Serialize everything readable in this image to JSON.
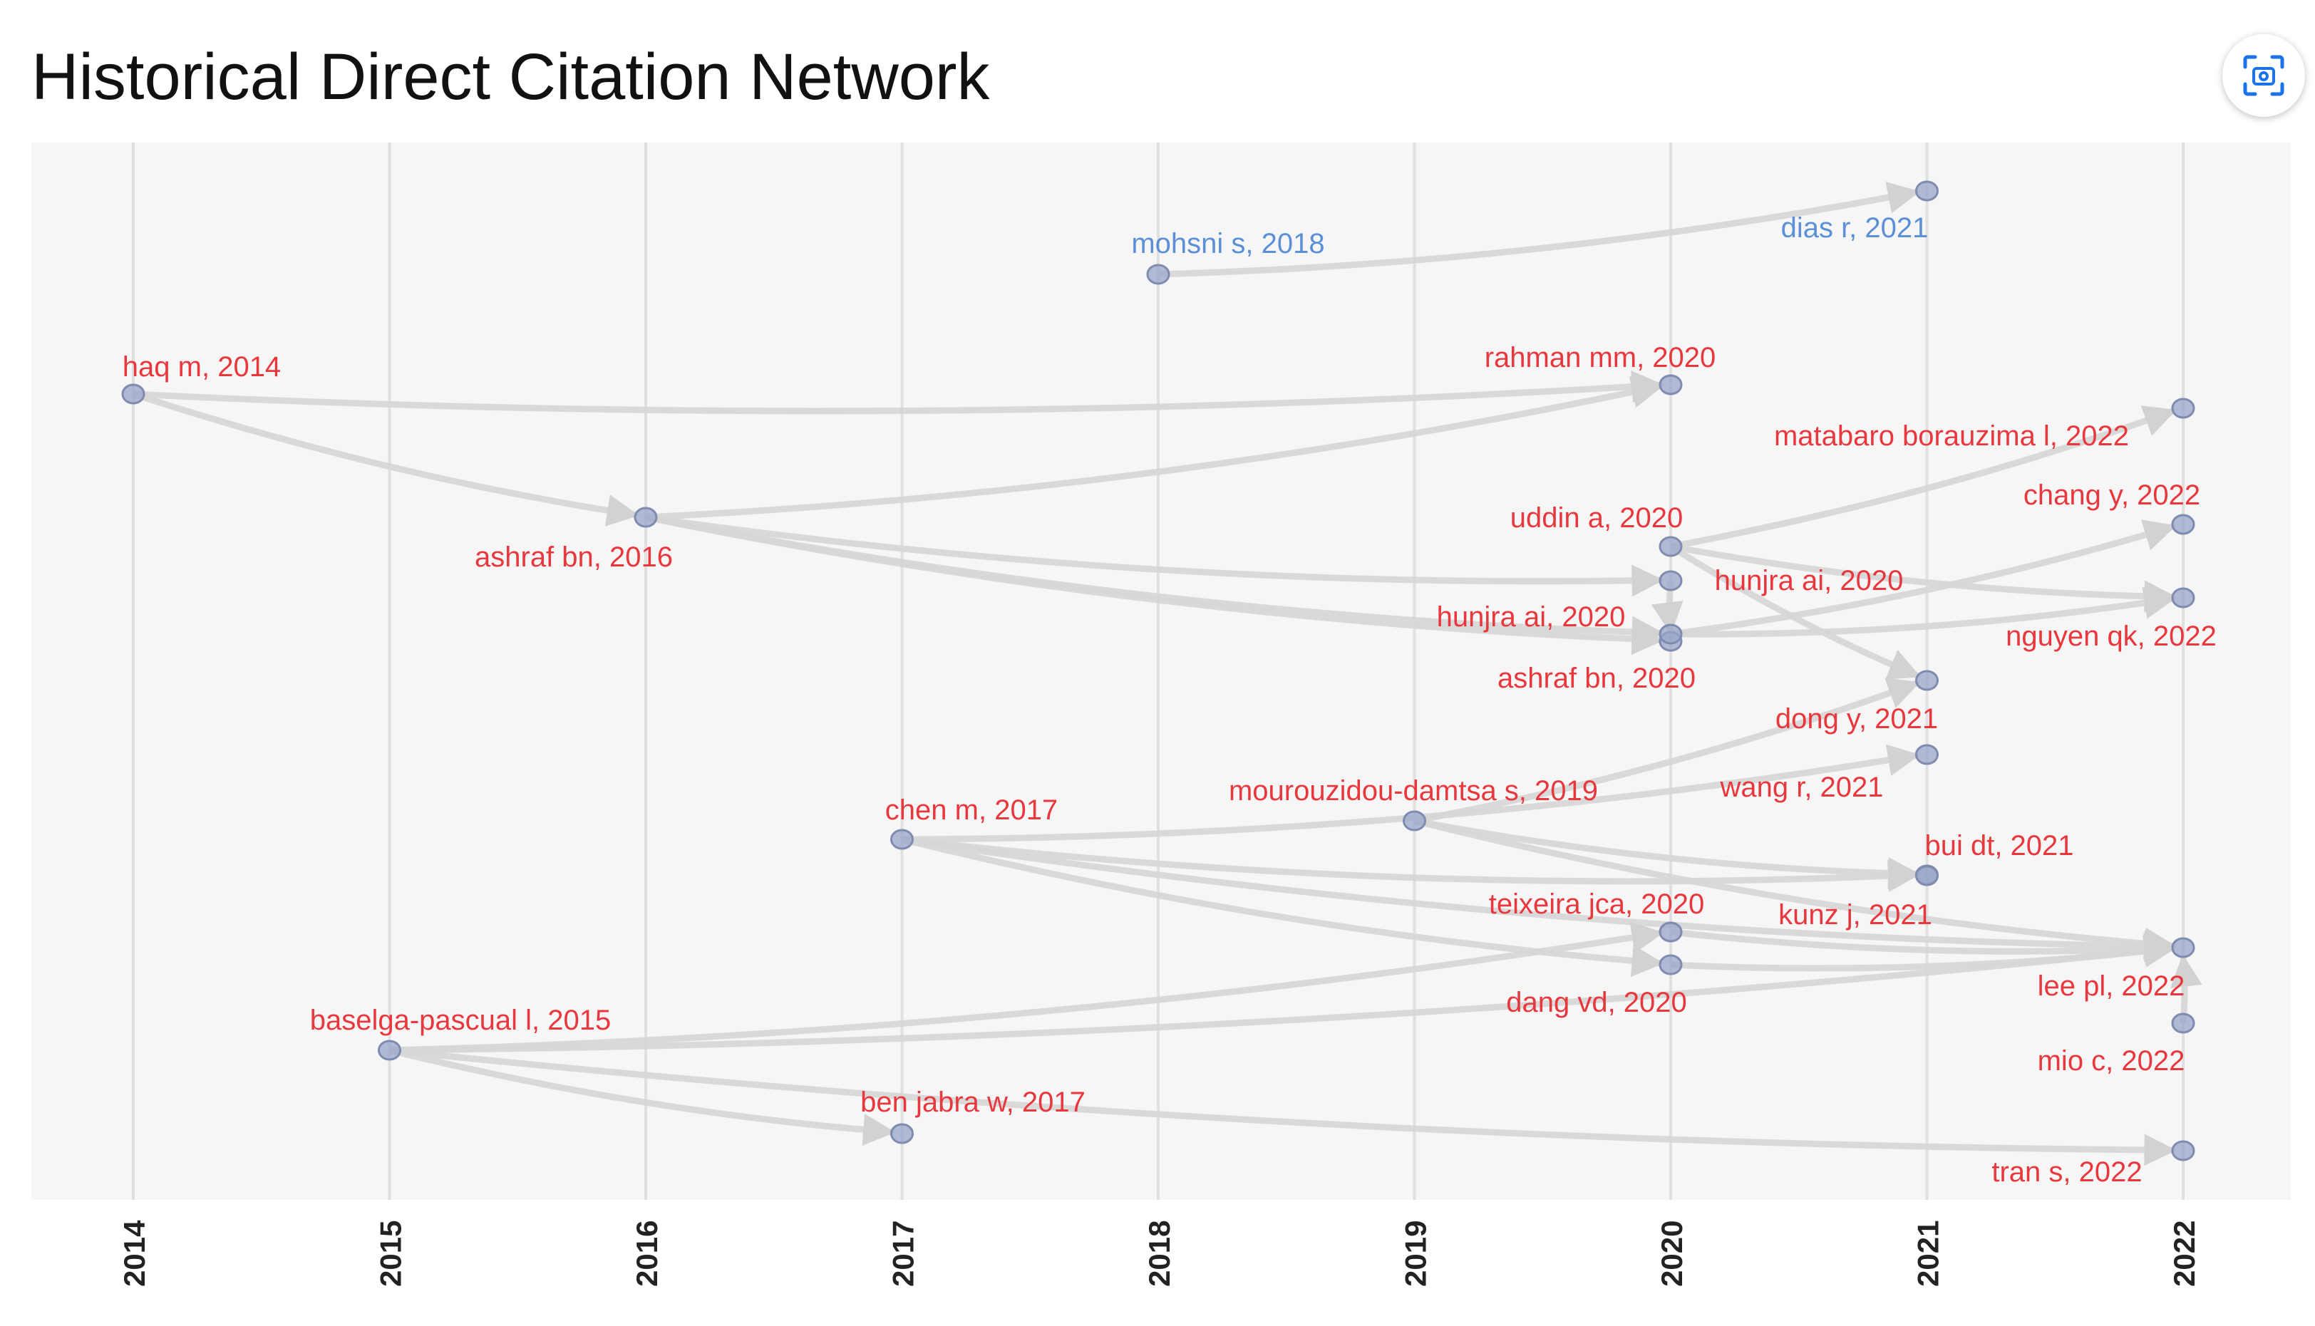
{
  "chart_data": {
    "type": "network",
    "title": "Historical Direct Citation Network",
    "x_axis": {
      "ticks": [
        "2014",
        "2015",
        "2016",
        "2017",
        "2018",
        "2019",
        "2020",
        "2021",
        "2022"
      ],
      "range": [
        2014,
        2022
      ]
    },
    "colors": {
      "red_group": "#e8383d",
      "blue_group": "#5b8fd6",
      "node": "#9aa6c8",
      "edge": "#d6d6d6",
      "grid": "#e0e0e0",
      "plot_bg": "#f6f6f6"
    },
    "nodes": [
      {
        "id": "mohsni_2018",
        "label": "mohsni s, 2018",
        "year": 2018,
        "group": "blue"
      },
      {
        "id": "dias_2021",
        "label": "dias r, 2021",
        "year": 2021,
        "group": "blue"
      },
      {
        "id": "haq_2014",
        "label": "haq m, 2014",
        "year": 2014,
        "group": "red"
      },
      {
        "id": "rahman_2020",
        "label": "rahman mm, 2020",
        "year": 2020,
        "group": "red"
      },
      {
        "id": "matabaro_2022",
        "label": "matabaro borauzima l, 2022",
        "year": 2022,
        "group": "red"
      },
      {
        "id": "ashraf_2016",
        "label": "ashraf bn, 2016",
        "year": 2016,
        "group": "red"
      },
      {
        "id": "uddin_2020",
        "label": "uddin a, 2020",
        "year": 2020,
        "group": "red"
      },
      {
        "id": "chang_2022",
        "label": "chang y, 2022",
        "year": 2022,
        "group": "red"
      },
      {
        "id": "hunjra_2020a",
        "label": "hunjra ai, 2020",
        "year": 2020,
        "group": "red"
      },
      {
        "id": "hunjra_2020b",
        "label": "hunjra ai, 2020",
        "year": 2020,
        "group": "red"
      },
      {
        "id": "nguyen_2022",
        "label": "nguyen qk, 2022",
        "year": 2022,
        "group": "red"
      },
      {
        "id": "ashraf_2020",
        "label": "ashraf bn, 2020",
        "year": 2020,
        "group": "red"
      },
      {
        "id": "dong_2021",
        "label": "dong y, 2021",
        "year": 2021,
        "group": "red"
      },
      {
        "id": "wang_2021",
        "label": "wang r, 2021",
        "year": 2021,
        "group": "red"
      },
      {
        "id": "chen_2017",
        "label": "chen m, 2017",
        "year": 2017,
        "group": "red"
      },
      {
        "id": "mourouzidou_2019",
        "label": "mourouzidou-damtsa s, 2019",
        "year": 2019,
        "group": "red"
      },
      {
        "id": "bui_2021",
        "label": "bui dt, 2021",
        "year": 2021,
        "group": "red"
      },
      {
        "id": "teixeira_2020",
        "label": "teixeira jca, 2020",
        "year": 2020,
        "group": "red"
      },
      {
        "id": "kunz_2021",
        "label": "kunz j, 2021",
        "year": 2021,
        "group": "red"
      },
      {
        "id": "lee_2022",
        "label": "lee pl, 2022",
        "year": 2022,
        "group": "red"
      },
      {
        "id": "dang_2020",
        "label": "dang vd, 2020",
        "year": 2020,
        "group": "red"
      },
      {
        "id": "baselga_2015",
        "label": "baselga-pascual l, 2015",
        "year": 2015,
        "group": "red"
      },
      {
        "id": "mio_2022",
        "label": "mio c, 2022",
        "year": 2022,
        "group": "red"
      },
      {
        "id": "benjabra_2017",
        "label": "ben jabra w, 2017",
        "year": 2017,
        "group": "red"
      },
      {
        "id": "tran_2022",
        "label": "tran s, 2022",
        "year": 2022,
        "group": "red"
      }
    ],
    "edges": [
      {
        "from": "mohsni_2018",
        "to": "dias_2021"
      },
      {
        "from": "haq_2014",
        "to": "rahman_2020"
      },
      {
        "from": "haq_2014",
        "to": "ashraf_2016"
      },
      {
        "from": "ashraf_2016",
        "to": "rahman_2020"
      },
      {
        "from": "ashraf_2016",
        "to": "hunjra_2020b"
      },
      {
        "from": "ashraf_2016",
        "to": "hunjra_2020a"
      },
      {
        "from": "ashraf_2016",
        "to": "ashraf_2020"
      },
      {
        "from": "uddin_2020",
        "to": "matabaro_2022"
      },
      {
        "from": "uddin_2020",
        "to": "nguyen_2022"
      },
      {
        "from": "uddin_2020",
        "to": "dong_2021"
      },
      {
        "from": "ashraf_2020",
        "to": "chang_2022"
      },
      {
        "from": "ashraf_2020",
        "to": "nguyen_2022"
      },
      {
        "from": "hunjra_2020b",
        "to": "hunjra_2020a"
      },
      {
        "from": "mourouzidou_2019",
        "to": "dong_2021"
      },
      {
        "from": "mourouzidou_2019",
        "to": "bui_2021"
      },
      {
        "from": "mourouzidou_2019",
        "to": "lee_2022"
      },
      {
        "from": "chen_2017",
        "to": "wang_2021"
      },
      {
        "from": "chen_2017",
        "to": "bui_2021"
      },
      {
        "from": "chen_2017",
        "to": "dang_2020"
      },
      {
        "from": "chen_2017",
        "to": "lee_2022"
      },
      {
        "from": "baselga_2015",
        "to": "teixeira_2020"
      },
      {
        "from": "baselga_2015",
        "to": "lee_2022"
      },
      {
        "from": "baselga_2015",
        "to": "benjabra_2017"
      },
      {
        "from": "baselga_2015",
        "to": "tran_2022"
      },
      {
        "from": "teixeira_2020",
        "to": "lee_2022"
      },
      {
        "from": "dang_2020",
        "to": "lee_2022"
      },
      {
        "from": "mio_2022",
        "to": "lee_2022"
      }
    ]
  }
}
